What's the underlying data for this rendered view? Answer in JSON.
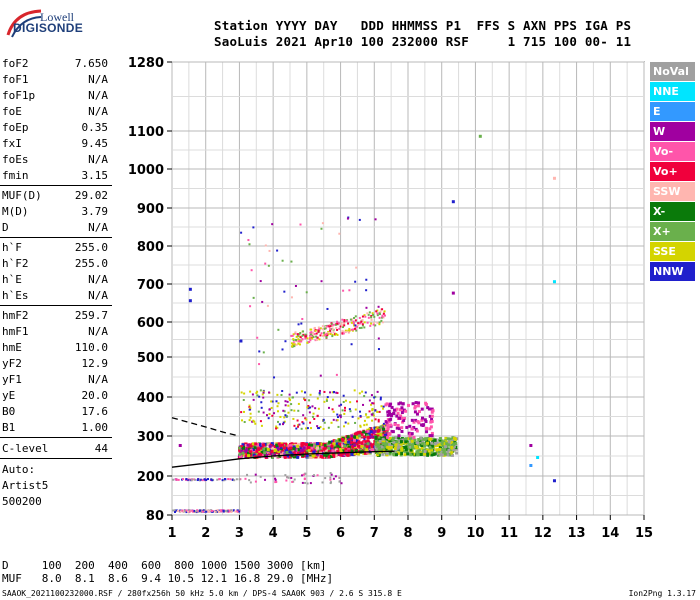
{
  "logo": {
    "line1": "Lowell",
    "line2": "DIGISONDE"
  },
  "header": {
    "line1": "Station YYYY DAY   DDD HHMMSS P1  FFS S AXN PPS IGA PS",
    "line2": "SaoLuis 2021 Apr10 100 232000 RSF     1 715 100 00- 11"
  },
  "params": {
    "group1": [
      {
        "name": "foF2",
        "value": "7.650"
      },
      {
        "name": "foF1",
        "value": "N/A"
      },
      {
        "name": "foF1p",
        "value": "N/A"
      },
      {
        "name": "foE",
        "value": "N/A"
      },
      {
        "name": "foEp",
        "value": "0.35"
      },
      {
        "name": "fxI",
        "value": "9.45"
      },
      {
        "name": "foEs",
        "value": "N/A"
      },
      {
        "name": "fmin",
        "value": "3.15"
      }
    ],
    "group2": [
      {
        "name": "MUF(D)",
        "value": "29.02"
      },
      {
        "name": "M(D)",
        "value": "3.79"
      },
      {
        "name": "D",
        "value": "N/A"
      }
    ],
    "group3": [
      {
        "name": "h`F",
        "value": "255.0"
      },
      {
        "name": "h`F2",
        "value": "255.0"
      },
      {
        "name": "h`E",
        "value": "N/A"
      },
      {
        "name": "h`Es",
        "value": "N/A"
      }
    ],
    "group4": [
      {
        "name": "hmF2",
        "value": "259.7"
      },
      {
        "name": "hmF1",
        "value": "N/A"
      },
      {
        "name": "hmE",
        "value": "110.0"
      },
      {
        "name": "yF2",
        "value": "12.9"
      },
      {
        "name": "yF1",
        "value": "N/A"
      },
      {
        "name": "yE",
        "value": "20.0"
      },
      {
        "name": "B0",
        "value": "17.6"
      },
      {
        "name": "B1",
        "value": "1.00"
      }
    ],
    "clevel": {
      "name": "C-level",
      "value": "44"
    },
    "auto": [
      "Auto:",
      "Artist5",
      "500200"
    ]
  },
  "legend": [
    {
      "label": "NoVal",
      "color": "#a0a0a0"
    },
    {
      "label": "NNE",
      "color": "#00e5ff"
    },
    {
      "label": "E",
      "color": "#3399ff"
    },
    {
      "label": "W",
      "color": "#a000a0"
    },
    {
      "label": "Vo-",
      "color": "#ff55aa"
    },
    {
      "label": "Vo+",
      "color": "#f0003c"
    },
    {
      "label": "SSW",
      "color": "#ffb6b0"
    },
    {
      "label": "X-",
      "color": "#0a7a0a"
    },
    {
      "label": "X+",
      "color": "#6ab04c"
    },
    {
      "label": "SSE",
      "color": "#d4d400"
    },
    {
      "label": "NNW",
      "color": "#2020cc"
    }
  ],
  "chart_data": {
    "type": "scatter",
    "x_ticks": [
      "1",
      "2",
      "3",
      "4",
      "5",
      "6",
      "7",
      "8",
      "9",
      "10",
      "11",
      "12",
      "13",
      "14",
      "15"
    ],
    "y_ticks": [
      "80",
      "200",
      "300",
      "400",
      "500",
      "600",
      "700",
      "800",
      "900",
      "1000",
      "1100",
      "1280"
    ],
    "xlim": [
      1,
      15
    ],
    "y_scale": "nonlinear (compressed toward top)",
    "y_tick_values": [
      80,
      200,
      300,
      400,
      500,
      600,
      700,
      800,
      900,
      1000,
      1100,
      1280
    ],
    "grid": true,
    "traces": [
      {
        "name": "F2 O-trace",
        "from_freq": 2.9,
        "to_freq": 7.3,
        "height_range_km": [
          250,
          350
        ],
        "color": "#f0003c"
      },
      {
        "name": "F2 X-trace",
        "from_freq": 7.0,
        "to_freq": 9.3,
        "height_range_km": [
          250,
          320
        ],
        "color": "#6ab04c"
      },
      {
        "name": "multihop",
        "from_freq": 4.5,
        "to_freq": 7.3,
        "height_range_km": [
          520,
          640
        ],
        "color": "#ff55aa"
      },
      {
        "name": "low noise",
        "from_freq": 1.0,
        "to_freq": 3.0,
        "height_km": 95,
        "color": "#ff55aa"
      }
    ],
    "profile_solid": [
      [
        1.0,
        222
      ],
      [
        2.0,
        232
      ],
      [
        3.0,
        243
      ],
      [
        4.0,
        250
      ],
      [
        5.0,
        255
      ],
      [
        6.0,
        258
      ],
      [
        7.0,
        261
      ],
      [
        7.6,
        262
      ]
    ],
    "profile_dashed": [
      [
        1.0,
        347
      ],
      [
        2.0,
        323
      ],
      [
        2.6,
        308
      ],
      [
        3.0,
        300
      ]
    ]
  },
  "footer": {
    "d_row": "D     100  200  400  600  800 1000 1500 3000 [km]",
    "muf_row": "MUF   8.0  8.1  8.6  9.4 10.5 12.1 16.8 29.0 [MHz]",
    "file": "SAAOK_2021100232000.RSF / 280fx256h 50 kHz 5.0 km / DPS-4 SAA0K 903 / 2.6 S 315.8 E",
    "version": "Ion2Png 1.3.17"
  }
}
